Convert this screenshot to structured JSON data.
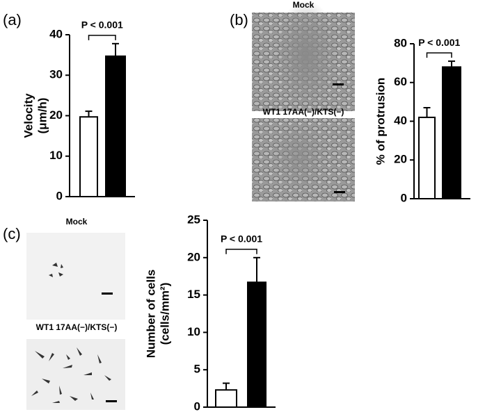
{
  "chart_data": [
    {
      "type": "bar",
      "panel_label": "(a)",
      "annotation": "P < 0.001",
      "ylabel": [
        "Velocity",
        "(μm/h)"
      ],
      "categories": [
        null,
        null
      ],
      "values": [
        19.7,
        34.7
      ],
      "errors": [
        1.4,
        3.1
      ],
      "colors": [
        "#ffffff",
        "#000000"
      ],
      "ylim": [
        0,
        40
      ],
      "yticks": [
        0,
        10,
        20,
        30,
        40
      ]
    },
    {
      "type": "bar",
      "panel_label": "(b)",
      "annotation": "P < 0.001",
      "ylabel": "% of protrusion",
      "image_labels": [
        "Mock",
        "WT1 17AA(−)/KTS(−)"
      ],
      "categories": [
        null,
        null
      ],
      "values": [
        42,
        68
      ],
      "errors": [
        5,
        3
      ],
      "colors": [
        "#ffffff",
        "#000000"
      ],
      "ylim": [
        0,
        80
      ],
      "yticks": [
        0,
        20,
        40,
        60,
        80
      ]
    },
    {
      "type": "bar",
      "panel_label": "(c)",
      "annotation": "P < 0.001",
      "ylabel": [
        "Number of cells",
        "(cells/mm²)"
      ],
      "image_labels": [
        "Mock",
        "WT1 17AA(−)/KTS(−)"
      ],
      "categories": [
        null,
        null
      ],
      "values": [
        2.3,
        16.7
      ],
      "errors": [
        0.9,
        3.3
      ],
      "colors": [
        "#ffffff",
        "#000000"
      ],
      "ylim": [
        0,
        25
      ],
      "yticks": [
        0,
        5,
        10,
        15,
        20,
        25
      ]
    }
  ]
}
